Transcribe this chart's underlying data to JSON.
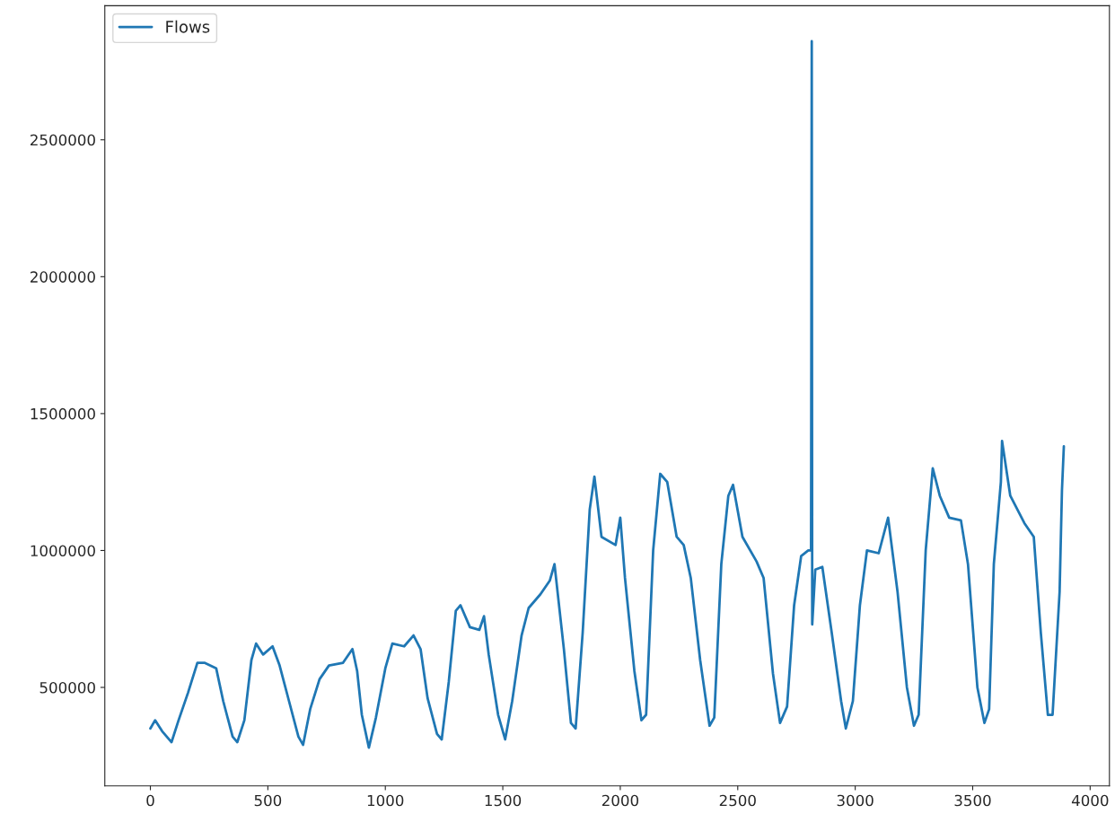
{
  "chart_data": {
    "type": "line",
    "series": [
      {
        "name": "Flows",
        "color": "#1f77b4",
        "x": [
          0,
          20,
          50,
          90,
          120,
          160,
          200,
          230,
          280,
          310,
          350,
          370,
          400,
          430,
          450,
          480,
          520,
          550,
          590,
          630,
          650,
          680,
          720,
          760,
          820,
          860,
          880,
          900,
          930,
          960,
          1000,
          1030,
          1080,
          1120,
          1150,
          1180,
          1220,
          1240,
          1270,
          1300,
          1320,
          1360,
          1400,
          1420,
          1440,
          1480,
          1510,
          1540,
          1580,
          1610,
          1660,
          1700,
          1720,
          1760,
          1790,
          1810,
          1840,
          1870,
          1890,
          1920,
          1980,
          2000,
          2020,
          2060,
          2090,
          2110,
          2140,
          2170,
          2200,
          2240,
          2270,
          2300,
          2340,
          2380,
          2400,
          2430,
          2460,
          2480,
          2520,
          2580,
          2610,
          2650,
          2680,
          2710,
          2740,
          2770,
          2800,
          2812,
          2815,
          2817,
          2830,
          2860,
          2900,
          2940,
          2960,
          2990,
          3020,
          3050,
          3100,
          3140,
          3180,
          3220,
          3250,
          3270,
          3300,
          3330,
          3360,
          3400,
          3450,
          3480,
          3520,
          3550,
          3570,
          3590,
          3620,
          3625,
          3660,
          3720,
          3760,
          3790,
          3820,
          3840,
          3870,
          3880,
          3888
        ],
        "values": [
          350000,
          380000,
          340000,
          300000,
          380000,
          480000,
          590000,
          590000,
          570000,
          450000,
          320000,
          300000,
          380000,
          600000,
          660000,
          620000,
          650000,
          580000,
          450000,
          320000,
          290000,
          420000,
          530000,
          580000,
          590000,
          640000,
          560000,
          400000,
          280000,
          390000,
          570000,
          660000,
          650000,
          690000,
          640000,
          460000,
          330000,
          310000,
          520000,
          780000,
          800000,
          720000,
          710000,
          760000,
          620000,
          400000,
          310000,
          450000,
          690000,
          790000,
          840000,
          890000,
          950000,
          640000,
          370000,
          350000,
          700000,
          1150000,
          1270000,
          1050000,
          1020000,
          1120000,
          900000,
          560000,
          380000,
          400000,
          1000000,
          1280000,
          1250000,
          1050000,
          1020000,
          900000,
          600000,
          360000,
          390000,
          950000,
          1200000,
          1240000,
          1050000,
          960000,
          900000,
          550000,
          370000,
          430000,
          800000,
          980000,
          1000000,
          1000000,
          2860000,
          730000,
          930000,
          940000,
          700000,
          450000,
          350000,
          450000,
          800000,
          1000000,
          990000,
          1120000,
          850000,
          500000,
          360000,
          400000,
          1000000,
          1300000,
          1200000,
          1120000,
          1110000,
          950000,
          500000,
          370000,
          420000,
          950000,
          1250000,
          1400000,
          1200000,
          1100000,
          1050000,
          700000,
          400000,
          400000,
          850000,
          1220000,
          1380000
        ]
      }
    ],
    "xlim": [
      -194,
      4082
    ],
    "xticks": [
      0,
      500,
      1000,
      1500,
      2000,
      2500,
      3000,
      3500,
      4000
    ],
    "ylim": [
      140500,
      2989500
    ],
    "yticks": [
      500000,
      1000000,
      1500000,
      2000000,
      2500000
    ],
    "legend": "top left",
    "grid": false
  }
}
